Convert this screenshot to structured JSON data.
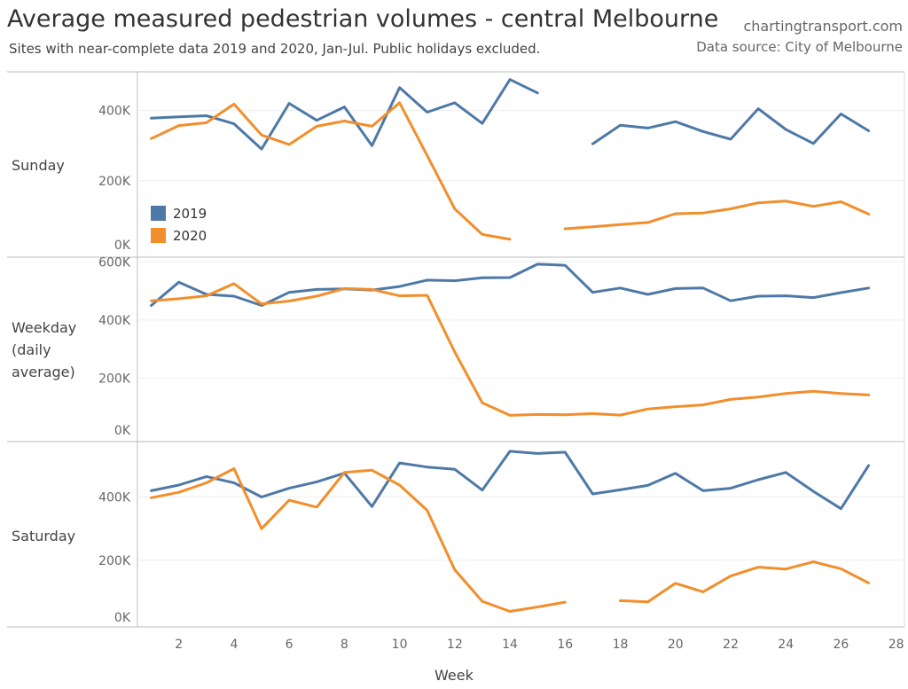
{
  "header": {
    "title": "Average measured pedestrian volumes - central Melbourne",
    "subtitle": "Sites with near-complete data 2019 and 2020, Jan-Jul. Public holidays excluded.",
    "site": "chartingtransport.com",
    "source": "Data source: City of Melbourne"
  },
  "colors": {
    "2019": "#4e79a7",
    "2020": "#f28e2b",
    "grid": "#eeeeee",
    "axis": "#bbbbbb"
  },
  "chart_data": {
    "type": "line",
    "x_label": "Week",
    "x_ticks": [
      2,
      4,
      6,
      8,
      10,
      12,
      14,
      16,
      18,
      20,
      22,
      24,
      26,
      28
    ],
    "x_range": [
      0.5,
      28.3
    ],
    "legend": [
      "2019",
      "2020"
    ],
    "legend_position": "left, inside top panel",
    "panels": [
      {
        "name": "Sunday",
        "label_lines": [
          "Sunday"
        ],
        "ylim": [
          0,
          510000
        ],
        "y_ticks": [
          0,
          200000,
          400000
        ],
        "y_tick_labels": [
          "0K",
          "200K",
          "400K"
        ],
        "series": [
          {
            "name": "2019",
            "x": [
              1,
              2,
              3,
              4,
              5,
              6,
              7,
              8,
              9,
              10,
              11,
              12,
              13,
              14,
              15,
              16,
              17,
              18,
              19,
              20,
              21,
              22,
              23,
              24,
              25,
              26,
              27,
              28
            ],
            "values": [
              378000,
              382000,
              385000,
              362000,
              290000,
              420000,
              372000,
              410000,
              300000,
              465000,
              395000,
              422000,
              363000,
              488000,
              450000,
              null,
              305000,
              358000,
              350000,
              368000,
              340000,
              318000,
              405000,
              346000,
              306000,
              390000,
              342000,
              null
            ]
          },
          {
            "name": "2020",
            "x": [
              1,
              2,
              3,
              4,
              5,
              6,
              7,
              8,
              9,
              10,
              11,
              12,
              13,
              14,
              15,
              16,
              17,
              18,
              19,
              20,
              21,
              22,
              23,
              24,
              25,
              26,
              27,
              28
            ],
            "values": [
              320000,
              357000,
              365000,
              418000,
              330000,
              303000,
              355000,
              370000,
              355000,
              422000,
              272000,
              120000,
              47000,
              33000,
              null,
              63000,
              69000,
              75000,
              81000,
              106000,
              108000,
              120000,
              137000,
              142000,
              127000,
              140000,
              105000,
              null
            ]
          }
        ]
      },
      {
        "name": "Weekday",
        "label_lines": [
          "Weekday",
          "(daily",
          "average)"
        ],
        "ylim": [
          0,
          610000
        ],
        "y_ticks": [
          0,
          200000,
          400000,
          600000
        ],
        "y_tick_labels": [
          "0K",
          "200K",
          "400K",
          "600K"
        ],
        "series": [
          {
            "name": "2019",
            "x": [
              1,
              2,
              3,
              4,
              5,
              6,
              7,
              8,
              9,
              10,
              11,
              12,
              13,
              14,
              15,
              16,
              17,
              18,
              19,
              20,
              21,
              22,
              23,
              24,
              25,
              26,
              27,
              28
            ],
            "values": [
              450000,
              530000,
              488000,
              482000,
              450000,
              495000,
              505000,
              507000,
              503000,
              515000,
              537000,
              535000,
              545000,
              546000,
              592000,
              588000,
              495000,
              510000,
              488000,
              508000,
              510000,
              466000,
              482000,
              483000,
              477000,
              494000,
              510000,
              null
            ]
          },
          {
            "name": "2020",
            "x": [
              1,
              2,
              3,
              4,
              5,
              6,
              7,
              8,
              9,
              10,
              11,
              12,
              13,
              14,
              15,
              16,
              17,
              18,
              19,
              20,
              21,
              22,
              23,
              24,
              25,
              26,
              27,
              28
            ],
            "values": [
              466000,
              473000,
              483000,
              525000,
              455000,
              465000,
              482000,
              508000,
              505000,
              483000,
              485000,
              290000,
              115000,
              72000,
              75000,
              74000,
              78000,
              73000,
              94000,
              102000,
              108000,
              127000,
              135000,
              147000,
              155000,
              147000,
              142000,
              null
            ]
          }
        ]
      },
      {
        "name": "Saturday",
        "label_lines": [
          "Saturday"
        ],
        "ylim": [
          0,
          570000
        ],
        "y_ticks": [
          0,
          200000,
          400000
        ],
        "y_tick_labels": [
          "0K",
          "200K",
          "400K"
        ],
        "series": [
          {
            "name": "2019",
            "x": [
              1,
              2,
              3,
              4,
              5,
              6,
              7,
              8,
              9,
              10,
              11,
              12,
              13,
              14,
              15,
              16,
              17,
              18,
              19,
              20,
              21,
              22,
              23,
              24,
              25,
              26,
              27,
              28
            ],
            "values": [
              420000,
              438000,
              465000,
              445000,
              400000,
              428000,
              448000,
              476000,
              370000,
              508000,
              495000,
              488000,
              422000,
              545000,
              538000,
              542000,
              410000,
              423000,
              437000,
              475000,
              420000,
              428000,
              455000,
              478000,
              418000,
              363000,
              500000,
              null
            ]
          },
          {
            "name": "2020",
            "x": [
              1,
              2,
              3,
              4,
              5,
              6,
              7,
              8,
              9,
              10,
              11,
              12,
              13,
              14,
              15,
              16,
              17,
              18,
              19,
              20,
              21,
              22,
              23,
              24,
              25,
              26,
              27,
              28
            ],
            "values": [
              398000,
              415000,
              445000,
              490000,
              300000,
              390000,
              368000,
              478000,
              485000,
              438000,
              358000,
              170000,
              70000,
              38000,
              52000,
              67000,
              null,
              72000,
              68000,
              127000,
              100000,
              150000,
              178000,
              172000,
              195000,
              173000,
              128000,
              null
            ]
          }
        ]
      }
    ]
  }
}
